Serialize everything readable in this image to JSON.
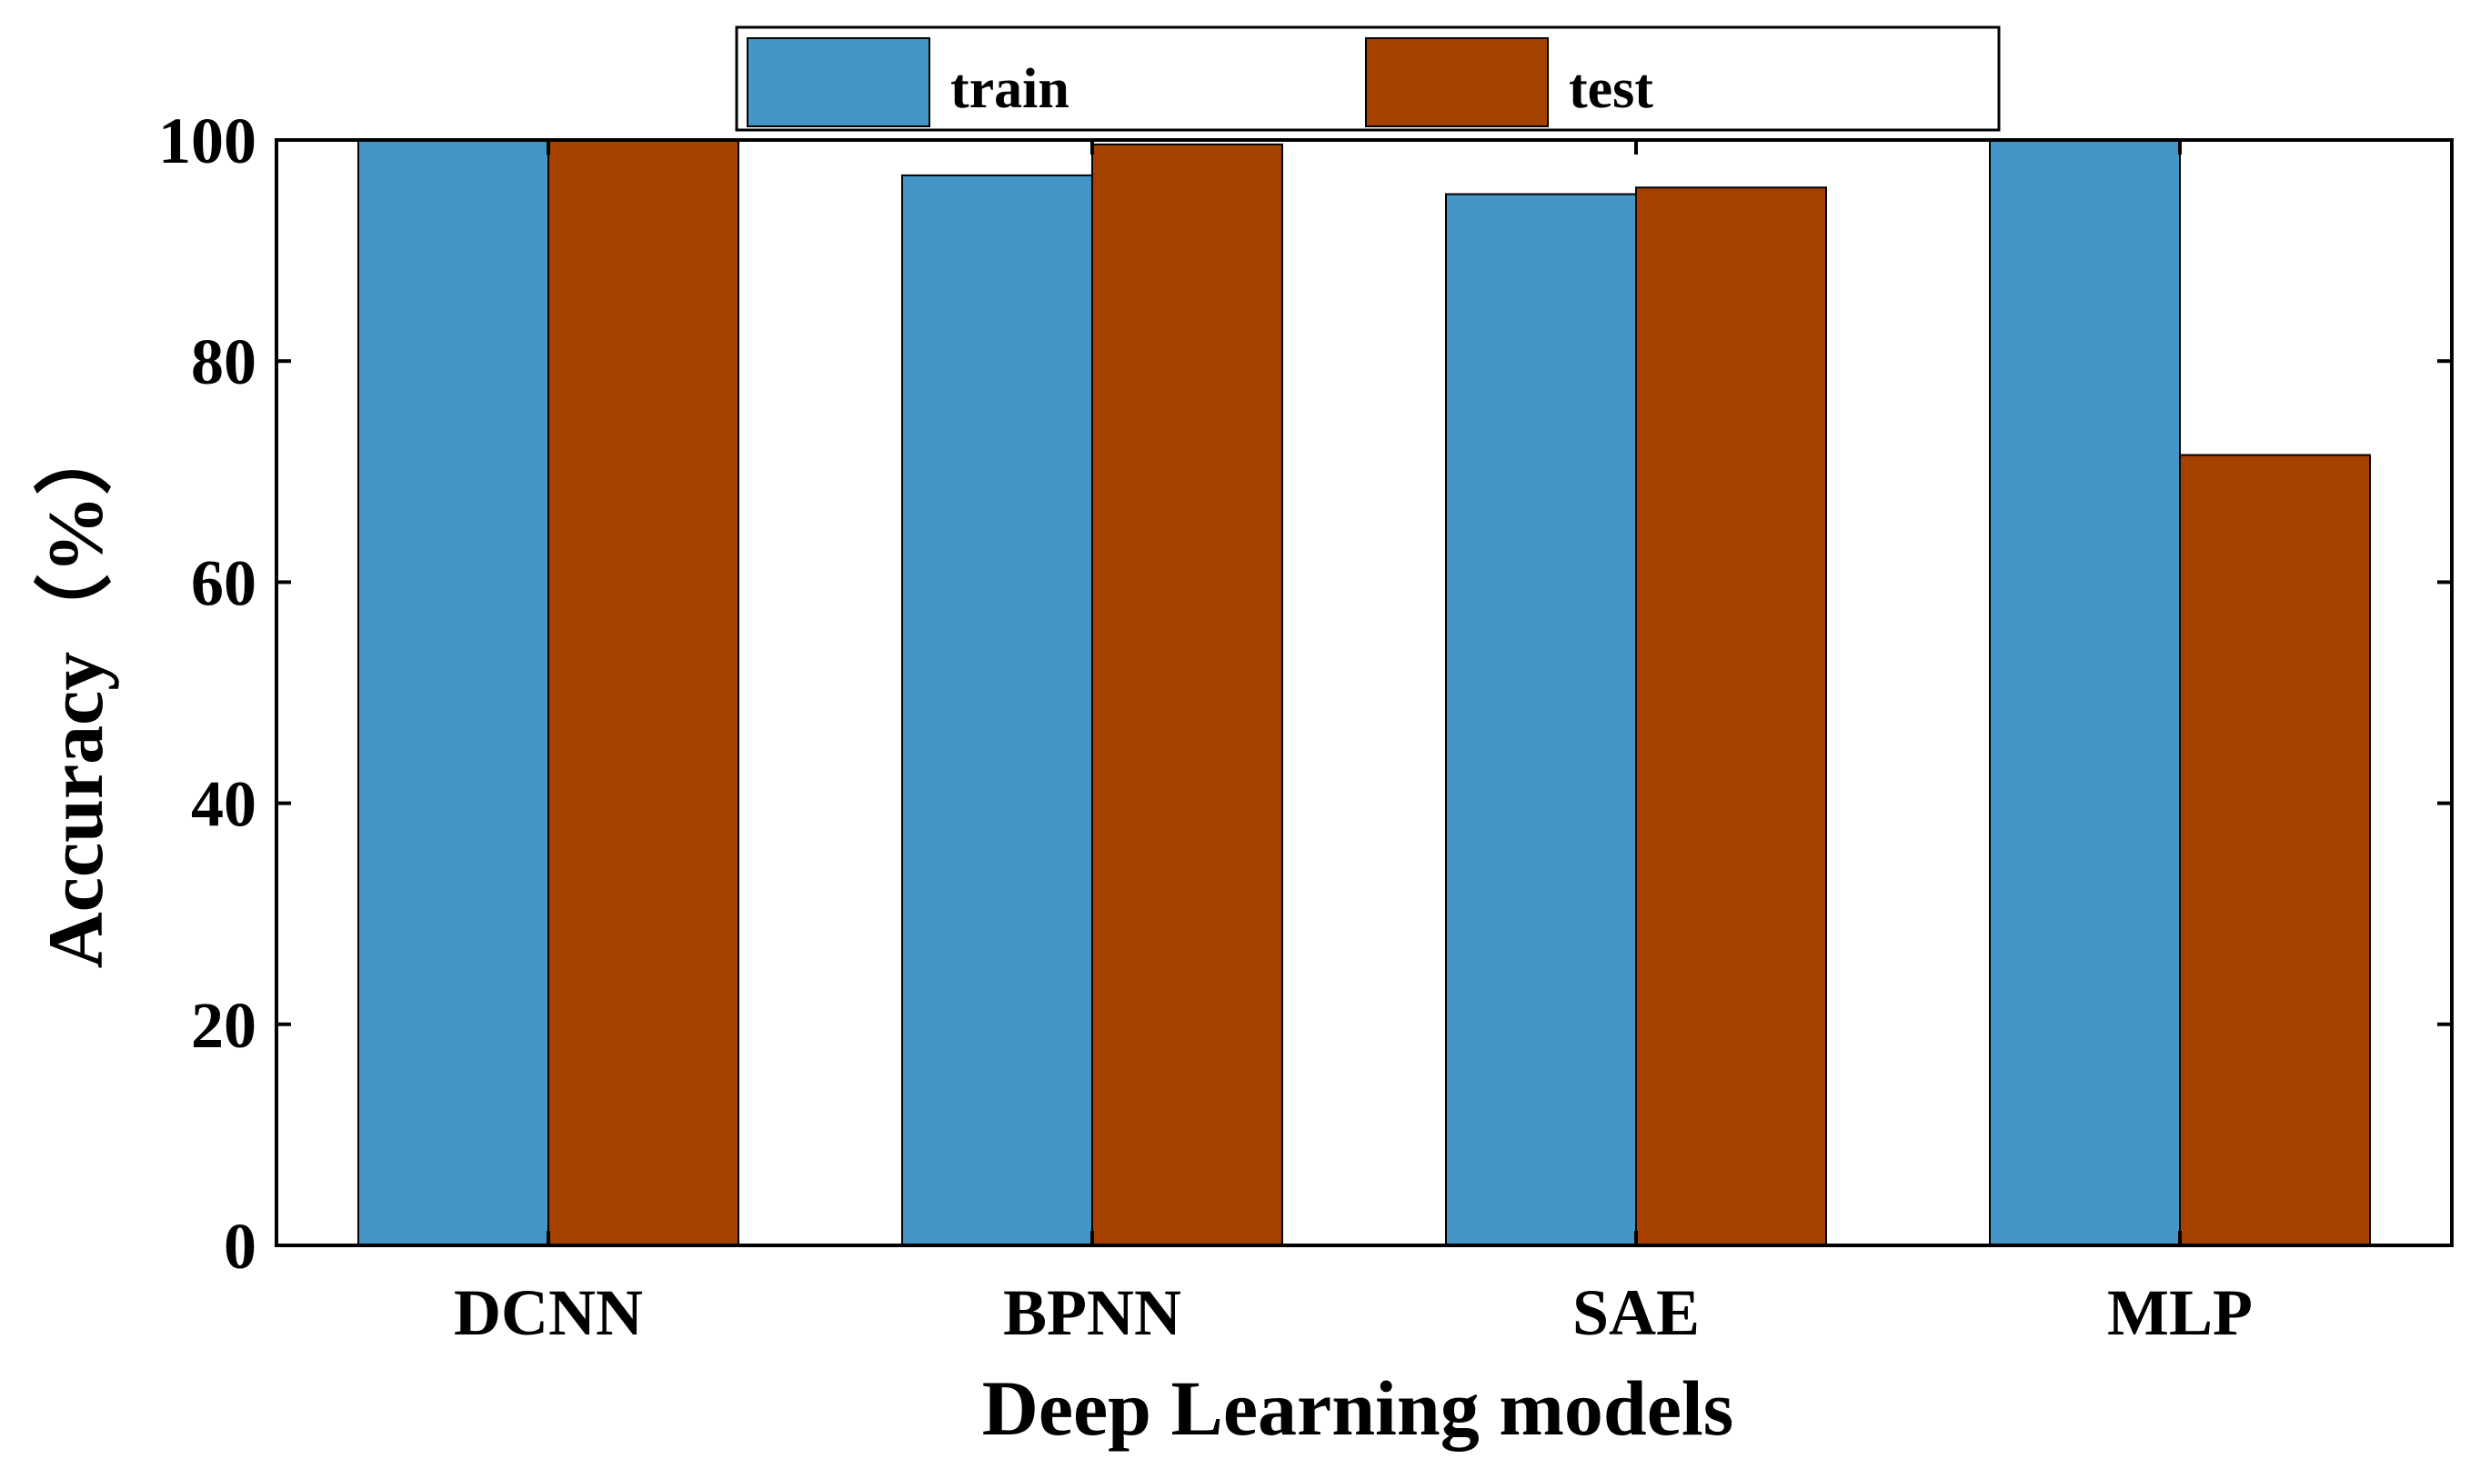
{
  "chart_data": {
    "type": "bar",
    "categories": [
      "DCNN",
      "BPNN",
      "SAE",
      "MLP"
    ],
    "series": [
      {
        "name": "train",
        "values": [
          100,
          96.8,
          95.1,
          100
        ],
        "color": "#4596c6"
      },
      {
        "name": "test",
        "values": [
          100,
          99.6,
          95.7,
          71.5
        ],
        "color": "#a54200"
      }
    ],
    "title": "",
    "xlabel": "Deep Learning models",
    "ylabel": "Accuracy（%）",
    "ylim": [
      0,
      100
    ],
    "yticks": [
      0,
      20,
      40,
      60,
      80,
      100
    ],
    "grid": false,
    "legend_position": "top-center"
  }
}
